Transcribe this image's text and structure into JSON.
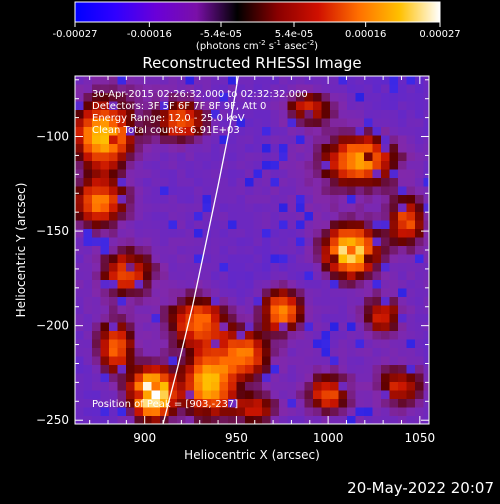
{
  "colorbar": {
    "ticks": [
      "-0.00027",
      "-0.00016",
      "-5.4e-05",
      "5.4e-05",
      "0.00016",
      "0.00027"
    ],
    "tick_values": [
      -0.00027,
      -0.00016,
      -5.4e-05,
      5.4e-05,
      0.00016,
      0.00027
    ],
    "range": [
      -0.00027,
      0.00027
    ],
    "units_main": "(photons cm",
    "units_exp1": "-2",
    "units_mid": " s",
    "units_exp2": "-1",
    "units_tail": " asec",
    "units_exp3": "-2",
    "units_close": ")",
    "colors": [
      "#0000ff",
      "#3000ff",
      "#6a00d8",
      "#7a10a8",
      "#000000",
      "#8a0000",
      "#d01000",
      "#ff7000",
      "#ffc000",
      "#ffffff"
    ]
  },
  "chart_data": {
    "type": "heatmap",
    "title": "Reconstructed RHESSI Image",
    "xlabel": "Heliocentric X (arcsec)",
    "ylabel": "Heliocentric Y (arcsec)",
    "xlim": [
      862,
      1055
    ],
    "ylim": [
      -252,
      -68
    ],
    "xticks": [
      900,
      950,
      1000,
      1050
    ],
    "yticks": [
      -100,
      -150,
      -200,
      -250
    ],
    "annotations": [
      "30-Apr-2015 02:26:32.000 to 02:32:32.000",
      "Detectors: 3F 5F 6F 7F 8F 9F, Att 0",
      "Energy Range: 12.0 - 25.0 keV",
      "Clean     Total counts: 6.91E+03"
    ],
    "position_label": "Position of Peak = [903,-237]",
    "peak": {
      "x": 903,
      "y": -237
    },
    "limb_points": [
      [
        910,
        -252
      ],
      [
        918,
        -222
      ],
      [
        926,
        -190
      ],
      [
        933,
        -158
      ],
      [
        940,
        -126
      ],
      [
        946,
        -97
      ],
      [
        951,
        -68
      ]
    ],
    "sources": [
      {
        "x": 904,
        "y": -236,
        "level": 1.0,
        "sx": 8,
        "sy": 9
      },
      {
        "x": 877,
        "y": -100,
        "level": 0.72,
        "sx": 11,
        "sy": 12
      },
      {
        "x": 875,
        "y": -135,
        "level": 0.62,
        "sx": 10,
        "sy": 9
      },
      {
        "x": 1012,
        "y": -161,
        "level": 0.85,
        "sx": 10,
        "sy": 9
      },
      {
        "x": 1018,
        "y": -112,
        "level": 0.62,
        "sx": 13,
        "sy": 9
      },
      {
        "x": 935,
        "y": -230,
        "level": 0.7,
        "sx": 9,
        "sy": 11
      },
      {
        "x": 955,
        "y": -215,
        "level": 0.55,
        "sx": 9,
        "sy": 9
      },
      {
        "x": 975,
        "y": -192,
        "level": 0.65,
        "sx": 8,
        "sy": 8
      },
      {
        "x": 930,
        "y": -198,
        "level": 0.55,
        "sx": 11,
        "sy": 9
      },
      {
        "x": 890,
        "y": -172,
        "level": 0.48,
        "sx": 9,
        "sy": 8
      },
      {
        "x": 884,
        "y": -212,
        "level": 0.55,
        "sx": 7,
        "sy": 10
      },
      {
        "x": 920,
        "y": -92,
        "level": 0.5,
        "sx": 9,
        "sy": 7
      },
      {
        "x": 990,
        "y": -85,
        "level": 0.42,
        "sx": 9,
        "sy": 6
      },
      {
        "x": 1043,
        "y": -145,
        "level": 0.5,
        "sx": 7,
        "sy": 9
      },
      {
        "x": 1040,
        "y": -232,
        "level": 0.42,
        "sx": 9,
        "sy": 7
      },
      {
        "x": 1000,
        "y": -236,
        "level": 0.48,
        "sx": 8,
        "sy": 7
      },
      {
        "x": 960,
        "y": -244,
        "level": 0.38,
        "sx": 9,
        "sy": 5
      },
      {
        "x": 1030,
        "y": -195,
        "level": 0.4,
        "sx": 7,
        "sy": 7
      }
    ],
    "grid": false
  },
  "footer": {
    "date": "20-May-2022 20:07"
  }
}
